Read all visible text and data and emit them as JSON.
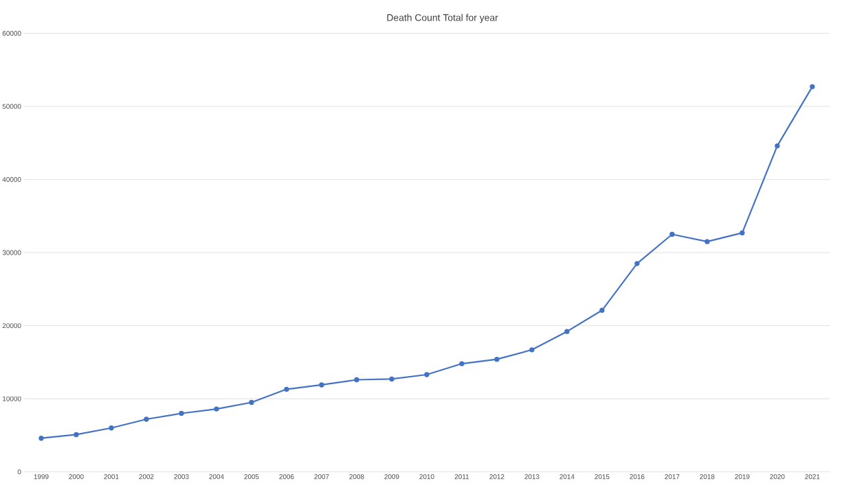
{
  "chart_data": {
    "type": "line",
    "title": "Death Count Total for year",
    "categories": [
      "1999",
      "2000",
      "2001",
      "2002",
      "2003",
      "2004",
      "2005",
      "2006",
      "2007",
      "2008",
      "2009",
      "2010",
      "2011",
      "2012",
      "2013",
      "2014",
      "2015",
      "2016",
      "2017",
      "2018",
      "2019",
      "2020",
      "2021"
    ],
    "series": [
      {
        "color": "#4472c4",
        "values": [
          4600,
          5100,
          6000,
          7200,
          8000,
          8600,
          9500,
          11300,
          11900,
          12600,
          12700,
          13300,
          14800,
          15400,
          16700,
          19200,
          22100,
          28500,
          32500,
          31500,
          32700,
          44600,
          52700
        ]
      }
    ],
    "ylim": [
      0,
      60000
    ],
    "yticks": [
      0,
      10000,
      20000,
      30000,
      40000,
      50000,
      60000
    ],
    "grid": "y",
    "marker": "circle",
    "line_style": "solid"
  }
}
